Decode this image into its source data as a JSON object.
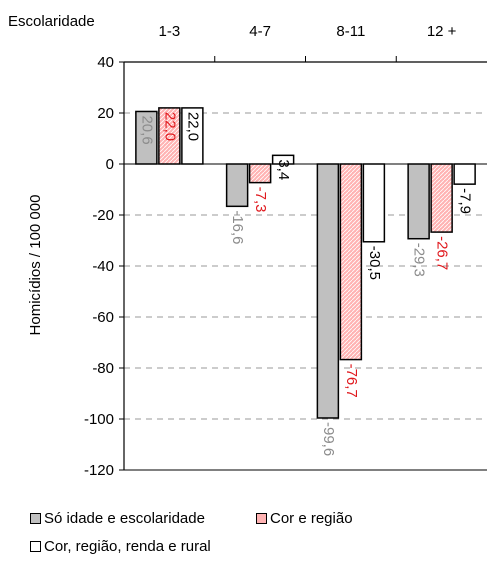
{
  "chart_data": {
    "type": "bar",
    "corner_label": "Escolaridade",
    "categories": [
      "1-3",
      "4-7",
      "8-11",
      "12 +"
    ],
    "ylabel": "Homicídios / 100 000",
    "ylim": [
      -120,
      40
    ],
    "yticks": [
      40,
      20,
      0,
      -20,
      -40,
      -60,
      -80,
      -100,
      -120
    ],
    "grid": true,
    "legend_position": "bottom",
    "series": [
      {
        "name": "Só  idade e escolaridade",
        "values": [
          20.6,
          -16.6,
          -99.6,
          -29.3
        ],
        "labels": [
          "20,6",
          "-16,6",
          "-99,6",
          "-29,3"
        ],
        "fill": "#c0c0c0",
        "label_color": "#8c8c8c"
      },
      {
        "name": "Cor e região",
        "values": [
          22.0,
          -7.3,
          -76.7,
          -26.7
        ],
        "labels": [
          "22,0",
          "-7,3",
          "-76,7",
          "-26,7"
        ],
        "fill": "#ffb3b3",
        "label_color": "#e0191e"
      },
      {
        "name": "Cor, região, renda e rural",
        "values": [
          22.0,
          3.4,
          -30.5,
          -7.9
        ],
        "labels": [
          "22,0",
          "3,4",
          "-30,5",
          "-7,9"
        ],
        "fill": "#ffffff",
        "label_color": "#000000"
      }
    ]
  }
}
